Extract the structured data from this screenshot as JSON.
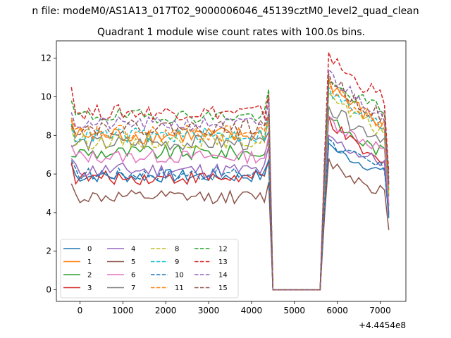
{
  "figure": {
    "suptitle": "n file: modeM0/AS1A13_017T02_9000006046_45139cztM0_level2_quad_clean",
    "title": "Quadrant 1 module wise count rates with 100.0s bins.",
    "x_offset_label": "+4.4454e8"
  },
  "chart_data": {
    "type": "line",
    "title": "Quadrant 1 module wise count rates with 100.0s bins.",
    "xlabel": "",
    "ylabel": "",
    "xlim": [
      -550,
      7600
    ],
    "ylim": [
      -0.6,
      12.9
    ],
    "x_offset": 444540000,
    "xticks": [
      0,
      1000,
      2000,
      3000,
      4000,
      5000,
      6000,
      7000
    ],
    "yticks": [
      0,
      2,
      4,
      6,
      8,
      10,
      12
    ],
    "xticklabels": [
      "0",
      "1000",
      "2000",
      "3000",
      "4000",
      "5000",
      "6000",
      "7000"
    ],
    "yticklabels": [
      "0",
      "2",
      "4",
      "6",
      "8",
      "10",
      "12"
    ],
    "grid": false,
    "legend": {
      "location": "lower left",
      "ncol": 4
    },
    "segments": {
      "seg1": {
        "x_start": -200,
        "x_end": 4400,
        "step": 100
      },
      "drop_x": 4500,
      "zero_end_x": 5600,
      "seg2": {
        "x_start": 5700,
        "x_end": 7200,
        "step": 100,
        "last_value_factor": 0.62
      }
    },
    "series": [
      {
        "name": "0",
        "color": "#1f77b4",
        "dash": "solid",
        "base1": 5.9,
        "spread1": 0.35,
        "start1": 6.5,
        "peak2": 7.6,
        "end2": 6.0,
        "spread2": 0.25
      },
      {
        "name": "1",
        "color": "#ff7f0e",
        "dash": "solid",
        "base1": 8.0,
        "spread1": 0.45,
        "start1": 8.8,
        "peak2": 11.0,
        "end2": 8.3,
        "spread2": 0.45
      },
      {
        "name": "2",
        "color": "#2ca02c",
        "dash": "solid",
        "base1": 7.1,
        "spread1": 0.4,
        "start1": 6.9,
        "peak2": 9.0,
        "end2": 7.0,
        "spread2": 0.35
      },
      {
        "name": "3",
        "color": "#d62728",
        "dash": "solid",
        "base1": 5.8,
        "spread1": 0.35,
        "start1": 6.6,
        "peak2": 9.0,
        "end2": 6.3,
        "spread2": 0.35
      },
      {
        "name": "4",
        "color": "#9467bd",
        "dash": "solid",
        "base1": 6.2,
        "spread1": 0.4,
        "start1": 6.8,
        "peak2": 8.0,
        "end2": 6.5,
        "spread2": 0.35
      },
      {
        "name": "5",
        "color": "#8c564b",
        "dash": "solid",
        "base1": 4.8,
        "spread1": 0.35,
        "start1": 5.5,
        "peak2": 6.8,
        "end2": 5.0,
        "spread2": 0.35
      },
      {
        "name": "6",
        "color": "#e377c2",
        "dash": "solid",
        "base1": 6.9,
        "spread1": 0.35,
        "start1": 7.5,
        "peak2": 9.0,
        "end2": 7.2,
        "spread2": 0.35
      },
      {
        "name": "7",
        "color": "#7f7f7f",
        "dash": "solid",
        "base1": 7.6,
        "spread1": 0.4,
        "start1": 7.4,
        "peak2": 9.5,
        "end2": 7.8,
        "spread2": 0.4
      },
      {
        "name": "8",
        "color": "#bcbd22",
        "dash": "dashed",
        "base1": 7.7,
        "spread1": 0.4,
        "start1": 8.4,
        "peak2": 10.2,
        "end2": 8.0,
        "spread2": 0.4
      },
      {
        "name": "9",
        "color": "#17becf",
        "dash": "dashed",
        "base1": 8.0,
        "spread1": 0.4,
        "start1": 8.6,
        "peak2": 10.5,
        "end2": 8.3,
        "spread2": 0.4
      },
      {
        "name": "10",
        "color": "#1f77b4",
        "dash": "dashed",
        "base1": 6.0,
        "spread1": 0.35,
        "start1": 6.7,
        "peak2": 7.8,
        "end2": 6.2,
        "spread2": 0.3
      },
      {
        "name": "11",
        "color": "#ff7f0e",
        "dash": "dashed",
        "base1": 8.1,
        "spread1": 0.45,
        "start1": 8.9,
        "peak2": 10.8,
        "end2": 8.4,
        "spread2": 0.45
      },
      {
        "name": "12",
        "color": "#2ca02c",
        "dash": "dashed",
        "base1": 9.0,
        "spread1": 0.35,
        "start1": 9.8,
        "peak2": 10.8,
        "end2": 9.3,
        "spread2": 0.35
      },
      {
        "name": "13",
        "color": "#d62728",
        "dash": "dashed",
        "base1": 9.2,
        "spread1": 0.4,
        "start1": 10.5,
        "peak2": 12.3,
        "end2": 9.8,
        "spread2": 0.4
      },
      {
        "name": "14",
        "color": "#9467bd",
        "dash": "dashed",
        "base1": 8.6,
        "spread1": 0.35,
        "start1": 9.2,
        "peak2": 11.4,
        "end2": 9.0,
        "spread2": 0.4
      },
      {
        "name": "15",
        "color": "#8c564b",
        "dash": "dashed",
        "base1": 8.4,
        "spread1": 0.4,
        "start1": 8.5,
        "peak2": 11.2,
        "end2": 8.8,
        "spread2": 0.45
      }
    ]
  }
}
